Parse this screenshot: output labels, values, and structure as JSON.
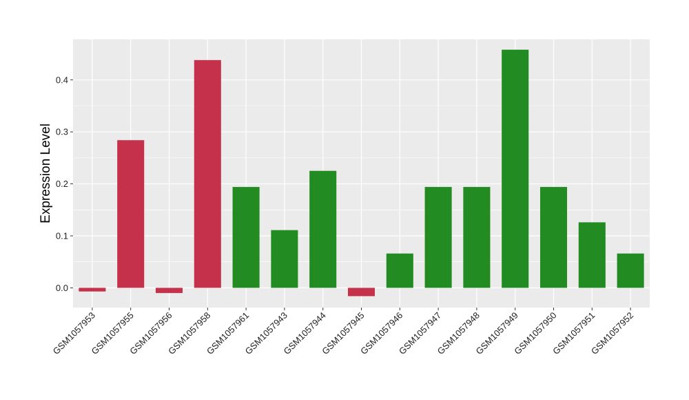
{
  "chart_data": {
    "type": "bar",
    "title": "",
    "xlabel": "",
    "ylabel": "Expression Level",
    "ylim": [
      -0.038,
      0.478
    ],
    "yticks": [
      0.0,
      0.1,
      0.2,
      0.3,
      0.4
    ],
    "ytick_labels": [
      "0.0",
      "0.1",
      "0.2",
      "0.3",
      "0.4"
    ],
    "grid": true,
    "legend": "none",
    "categories": [
      "GSM1057953",
      "GSM1057955",
      "GSM1057956",
      "GSM1057958",
      "GSM1057961",
      "GSM1057943",
      "GSM1057944",
      "GSM1057945",
      "GSM1057946",
      "GSM1057947",
      "GSM1057948",
      "GSM1057949",
      "GSM1057950",
      "GSM1057951",
      "GSM1057952"
    ],
    "values": [
      -0.007,
      0.284,
      -0.01,
      0.438,
      0.194,
      0.111,
      0.225,
      -0.016,
      0.066,
      0.194,
      0.194,
      0.458,
      0.194,
      0.126,
      0.066
    ],
    "bar_colors": [
      "#C5304A",
      "#C5304A",
      "#C5304A",
      "#C5304A",
      "#228B22",
      "#228B22",
      "#228B22",
      "#C5304A",
      "#228B22",
      "#228B22",
      "#228B22",
      "#228B22",
      "#228B22",
      "#228B22",
      "#228B22"
    ],
    "panel_background": "#EBEBEB",
    "grid_color": "#FFFFFF"
  }
}
